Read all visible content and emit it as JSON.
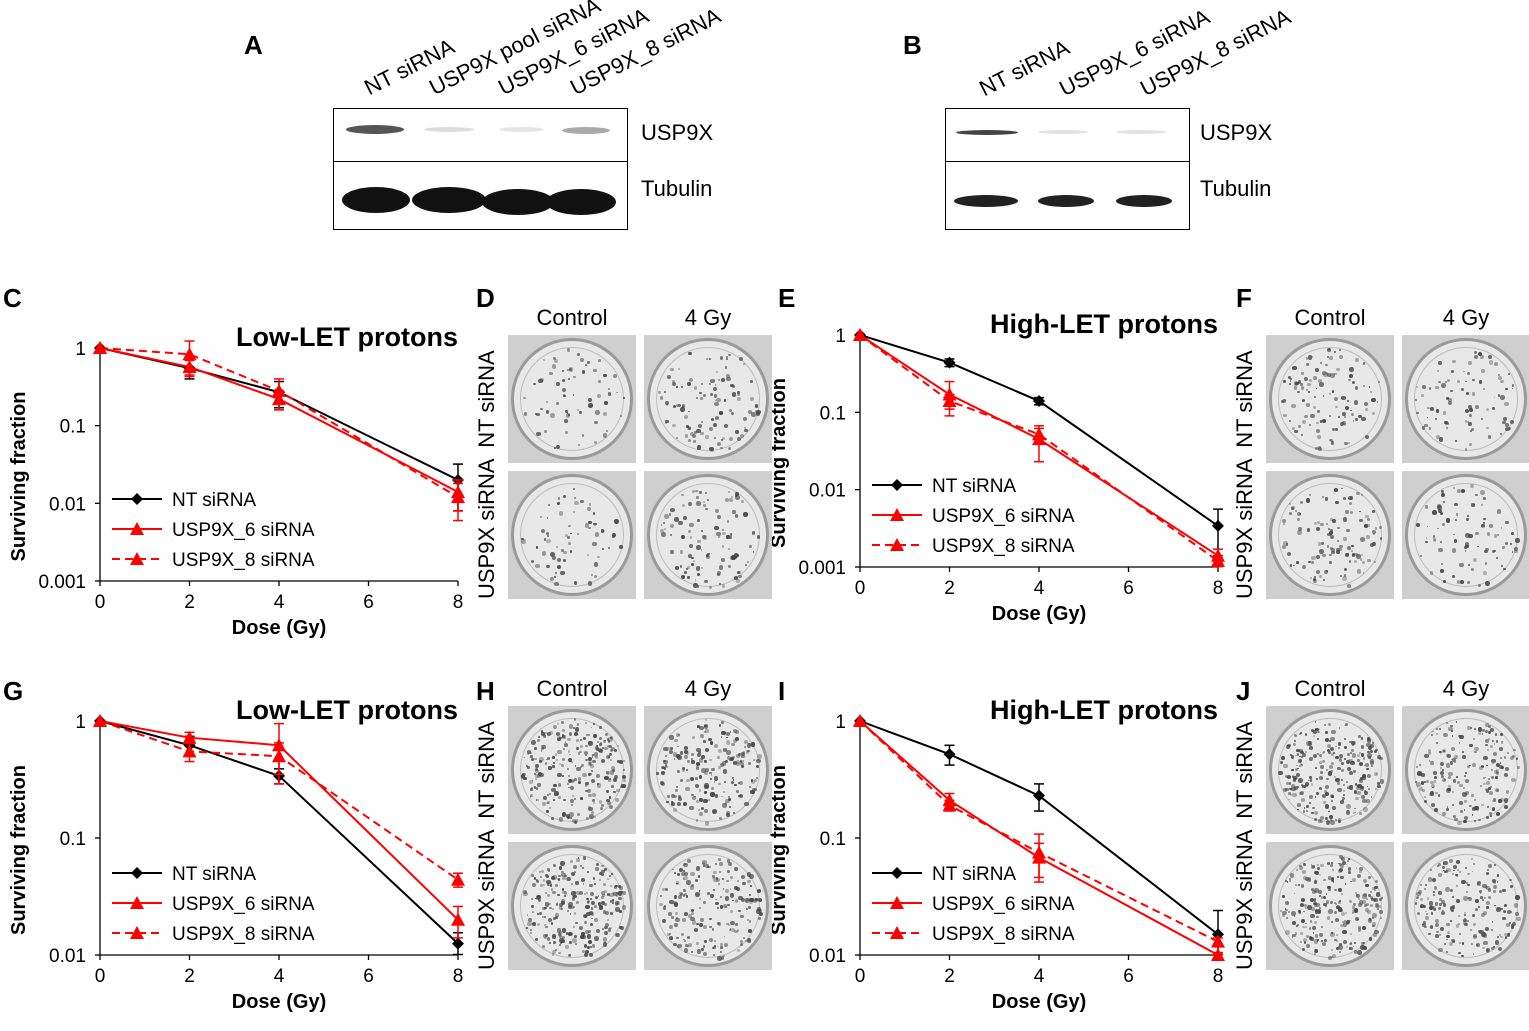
{
  "panels": {
    "A": "A",
    "B": "B",
    "C": "C",
    "D": "D",
    "E": "E",
    "F": "F",
    "G": "G",
    "H": "H",
    "I": "I",
    "J": "J"
  },
  "blot_A": {
    "lanes": [
      "NT siRNA",
      "USP9X pool siRNA",
      "USP9X_6 siRNA",
      "USP9X_8 siRNA"
    ],
    "top_label": "USP9X",
    "bottom_label": "Tubulin"
  },
  "blot_B": {
    "lanes": [
      "NT siRNA",
      "USP9X_6 siRNA",
      "USP9X_8 siRNA"
    ],
    "top_label": "USP9X",
    "bottom_label": "Tubulin"
  },
  "colony_panels": {
    "col_control": "Control",
    "col_4gy": "4 Gy",
    "row_nt": "NT siRNA",
    "row_usp9x": "USP9X siRNA"
  },
  "colors": {
    "nt": "#000000",
    "usp9x": "#ff0000"
  },
  "chart_data": [
    {
      "panel": "C",
      "type": "line",
      "title": "Low-LET protons",
      "xlabel": "Dose (Gy)",
      "ylabel": "Surviving fraction",
      "yscale": "log",
      "xlim": [
        0,
        8
      ],
      "ylim": [
        0.001,
        1
      ],
      "xticks": [
        "0",
        "2",
        "4",
        "6",
        "8"
      ],
      "yticks": [
        "0.001",
        "0.01",
        "0.1",
        "1"
      ],
      "legend": "bottom-left",
      "grid": false,
      "x": [
        0,
        2,
        4,
        8
      ],
      "series": [
        {
          "name": "NT siRNA",
          "color": "#000000",
          "marker": "diamond",
          "dashed": false,
          "values": [
            1,
            0.55,
            0.27,
            0.02
          ],
          "err": [
            0,
            0.15,
            0.1,
            0.012
          ]
        },
        {
          "name": "USP9X_6 siRNA",
          "color": "#ff0000",
          "marker": "triangle",
          "dashed": false,
          "values": [
            1,
            0.57,
            0.22,
            0.014
          ],
          "err": [
            0,
            0.12,
            0.06,
            0.006
          ]
        },
        {
          "name": "USP9X_8 siRNA",
          "color": "#ff0000",
          "marker": "triangle",
          "dashed": true,
          "values": [
            1,
            0.83,
            0.28,
            0.012
          ],
          "err": [
            0,
            0.4,
            0.12,
            0.006
          ]
        }
      ]
    },
    {
      "panel": "E",
      "type": "line",
      "title": "High-LET protons",
      "xlabel": "Dose (Gy)",
      "ylabel": "Surviving fraction",
      "yscale": "log",
      "xlim": [
        0,
        8
      ],
      "ylim": [
        0.001,
        1
      ],
      "xticks": [
        "0",
        "2",
        "4",
        "6",
        "8"
      ],
      "yticks": [
        "0.001",
        "0.01",
        "0.1",
        "1"
      ],
      "legend": "bottom-left",
      "grid": false,
      "x": [
        0,
        2,
        4,
        8
      ],
      "series": [
        {
          "name": "NT siRNA",
          "color": "#000000",
          "marker": "diamond",
          "dashed": false,
          "values": [
            1,
            0.44,
            0.14,
            0.0034
          ],
          "err": [
            0,
            0.05,
            0.015,
            0.0022
          ]
        },
        {
          "name": "USP9X_6 siRNA",
          "color": "#ff0000",
          "marker": "triangle",
          "dashed": false,
          "values": [
            1,
            0.17,
            0.045,
            0.0014
          ],
          "err": [
            0,
            0.08,
            0.022,
            0.0003
          ]
        },
        {
          "name": "USP9X_8 siRNA",
          "color": "#ff0000",
          "marker": "triangle",
          "dashed": true,
          "values": [
            1,
            0.14,
            0.052,
            0.0012
          ],
          "err": [
            0,
            0.03,
            0.01,
            0.0002
          ]
        }
      ]
    },
    {
      "panel": "G",
      "type": "line",
      "title": "Low-LET protons",
      "xlabel": "Dose (Gy)",
      "ylabel": "Surviving fraction",
      "yscale": "log",
      "xlim": [
        0,
        8
      ],
      "ylim": [
        0.01,
        1
      ],
      "xticks": [
        "0",
        "2",
        "4",
        "6",
        "8"
      ],
      "yticks": [
        "0.01",
        "0.1",
        "1"
      ],
      "legend": "bottom-left",
      "grid": false,
      "x": [
        0,
        2,
        4,
        8
      ],
      "series": [
        {
          "name": "NT siRNA",
          "color": "#000000",
          "marker": "diamond",
          "dashed": false,
          "values": [
            1,
            0.62,
            0.34,
            0.0125
          ],
          "err": [
            0,
            0.12,
            0.05,
            0.003
          ]
        },
        {
          "name": "USP9X_6 siRNA",
          "color": "#ff0000",
          "marker": "triangle",
          "dashed": false,
          "values": [
            1,
            0.72,
            0.62,
            0.02
          ],
          "err": [
            0,
            0.08,
            0.33,
            0.006
          ]
        },
        {
          "name": "USP9X_8 siRNA",
          "color": "#ff0000",
          "marker": "triangle",
          "dashed": true,
          "values": [
            1,
            0.55,
            0.5,
            0.044
          ],
          "err": [
            0,
            0.1,
            0.15,
            0.006
          ]
        }
      ]
    },
    {
      "panel": "I",
      "type": "line",
      "title": "High-LET protons",
      "xlabel": "Dose (Gy)",
      "ylabel": "Surviving fraction",
      "yscale": "log",
      "xlim": [
        0,
        8
      ],
      "ylim": [
        0.01,
        1
      ],
      "xticks": [
        "0",
        "2",
        "4",
        "6",
        "8"
      ],
      "yticks": [
        "0.01",
        "0.1",
        "1"
      ],
      "legend": "bottom-left",
      "grid": false,
      "x": [
        0,
        2,
        4,
        8
      ],
      "series": [
        {
          "name": "NT siRNA",
          "color": "#000000",
          "marker": "diamond",
          "dashed": false,
          "values": [
            1,
            0.52,
            0.23,
            0.015
          ],
          "err": [
            0,
            0.1,
            0.06,
            0.009
          ]
        },
        {
          "name": "USP9X_6 siRNA",
          "color": "#ff0000",
          "marker": "triangle",
          "dashed": false,
          "values": [
            1,
            0.21,
            0.068,
            0.01
          ],
          "err": [
            0,
            0.03,
            0.022,
            0.0005
          ]
        },
        {
          "name": "USP9X_8 siRNA",
          "color": "#ff0000",
          "marker": "triangle",
          "dashed": true,
          "values": [
            1,
            0.19,
            0.075,
            0.013
          ],
          "err": [
            0,
            0.02,
            0.033,
            0.001
          ]
        }
      ]
    }
  ]
}
